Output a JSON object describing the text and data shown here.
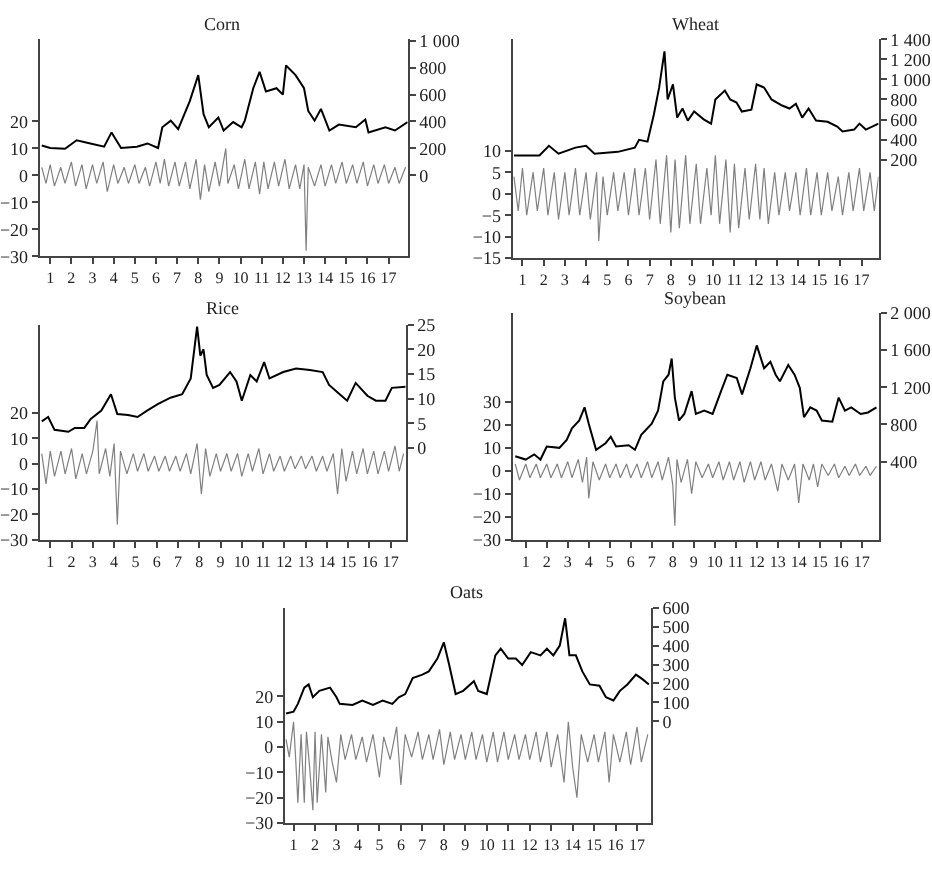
{
  "chart_data": [
    {
      "type": "line",
      "title": "Corn",
      "xlim": [
        0.5,
        17.9
      ],
      "xticks": [
        1,
        2,
        3,
        4,
        5,
        6,
        7,
        8,
        9,
        10,
        11,
        12,
        13,
        14,
        15,
        16,
        17
      ],
      "ylim": [
        -30,
        50.5
      ],
      "yticks": [
        -30,
        -20,
        -10,
        0,
        10,
        20
      ],
      "y2lim": [
        -600,
        1010
      ],
      "y2ticks": [
        0,
        200,
        400,
        600,
        800,
        {
          "value": 1000,
          "label": "1 000"
        }
      ],
      "series": [
        {
          "color": "#808080",
          "x": [
            0.6,
            0.8,
            1.0,
            1.2,
            1.5,
            1.7,
            2.0,
            2.2,
            2.5,
            2.7,
            3.0,
            3.2,
            3.5,
            3.7,
            4.0,
            4.2,
            4.5,
            4.7,
            5.0,
            5.2,
            5.5,
            5.7,
            6.0,
            6.2,
            6.4,
            6.6,
            6.9,
            7.1,
            7.4,
            7.6,
            7.9,
            8.1,
            8.3,
            8.5,
            8.8,
            9.0,
            9.3,
            9.4,
            9.7,
            9.9,
            10.2,
            10.4,
            10.7,
            10.9,
            11.1,
            11.3,
            11.6,
            11.8,
            12.1,
            12.3,
            12.6,
            12.8,
            13.0,
            13.1,
            13.2,
            13.5,
            13.8,
            14.0,
            14.3,
            14.5,
            14.8,
            15.0,
            15.3,
            15.5,
            15.8,
            16.0,
            16.3,
            16.5,
            16.8,
            17.0,
            17.3,
            17.5,
            17.8
          ],
          "values": [
            3,
            -3,
            4,
            -4,
            3,
            -3,
            5,
            -4,
            4,
            -5,
            4,
            -3,
            5,
            -6,
            4,
            -3,
            3,
            -3,
            4,
            -3,
            3,
            -4,
            5,
            -3,
            6,
            -4,
            5,
            -4,
            5,
            -5,
            6,
            -9,
            4,
            -6,
            5,
            -4,
            10,
            -3,
            4,
            -5,
            6,
            -5,
            5,
            -7,
            5,
            -5,
            5,
            -4,
            6,
            -5,
            4,
            -5,
            4,
            -28,
            3,
            -4,
            4,
            -4,
            4,
            -3,
            5,
            -3,
            4,
            -3,
            5,
            -4,
            4,
            -3,
            4,
            -3,
            3,
            -3,
            3
          ]
        },
        {
          "color": "#000000",
          "axis": "y2",
          "x": [
            0.6,
            1,
            1.7,
            2.25,
            2.9,
            3.55,
            3.9,
            4.35,
            5.1,
            5.6,
            6.1,
            6.3,
            6.7,
            7.05,
            7.6,
            8.0,
            8.25,
            8.5,
            8.95,
            9.2,
            9.65,
            10.05,
            10.2,
            10.6,
            10.9,
            11.2,
            11.7,
            12.0,
            12.15,
            12.6,
            13.0,
            13.2,
            13.5,
            13.8,
            14.2,
            14.65,
            15.45,
            15.9,
            16.05,
            16.85,
            17.3,
            17.9
          ],
          "values": [
            222,
            203,
            198,
            261,
            237,
            213,
            319,
            203,
            213,
            237,
            203,
            357,
            406,
            343,
            551,
            744,
            454,
            357,
            430,
            333,
            396,
            357,
            406,
            647,
            768,
            623,
            647,
            599,
            816,
            744,
            647,
            478,
            406,
            493,
            333,
            377,
            357,
            415,
            319,
            357,
            333,
            396
          ]
        }
      ]
    },
    {
      "type": "line",
      "title": "Wheat",
      "xlim": [
        0.53,
        17.8
      ],
      "xticks": [
        1,
        2,
        3,
        4,
        5,
        6,
        7,
        8,
        9,
        10,
        11,
        12,
        13,
        14,
        15,
        16,
        17
      ],
      "ylim": [
        -15,
        36
      ],
      "yticks": [
        -15,
        -10,
        -5,
        0,
        5,
        10
      ],
      "y2lim": [
        -782,
        1400
      ],
      "y2ticks": [
        200,
        400,
        600,
        800,
        {
          "value": 1000,
          "label": "1 000"
        },
        {
          "value": 1200,
          "label": "1 200"
        },
        {
          "value": 1400,
          "label": "1 400"
        }
      ],
      "series": [
        {
          "color": "#808080",
          "x": [
            0.6,
            0.8,
            1.0,
            1.2,
            1.5,
            1.7,
            2.0,
            2.2,
            2.5,
            2.7,
            3.0,
            3.2,
            3.5,
            3.7,
            4.0,
            4.2,
            4.5,
            4.6,
            4.8,
            5.0,
            5.3,
            5.5,
            5.8,
            6.0,
            6.3,
            6.5,
            6.8,
            7.0,
            7.3,
            7.5,
            7.8,
            8.0,
            8.2,
            8.4,
            8.7,
            8.9,
            9.2,
            9.4,
            9.7,
            9.9,
            10.1,
            10.3,
            10.6,
            10.8,
            11.0,
            11.2,
            11.5,
            11.7,
            12.0,
            12.2,
            12.4,
            12.6,
            12.9,
            13.1,
            13.4,
            13.6,
            13.9,
            14.1,
            14.4,
            14.6,
            14.9,
            15.1,
            15.4,
            15.6,
            15.9,
            16.1,
            16.4,
            16.6,
            16.9,
            17.1,
            17.4,
            17.6,
            17.8
          ],
          "values": [
            4,
            -4,
            6,
            -5,
            5,
            -4,
            6,
            -5,
            5,
            -6,
            5,
            -5,
            6,
            -5,
            5,
            -6,
            5,
            -11,
            4,
            -5,
            5,
            -4,
            5,
            -5,
            6,
            -5,
            6,
            -6,
            8,
            -7,
            9,
            -9,
            8,
            -8,
            9,
            -7,
            7,
            -7,
            6,
            -5,
            9,
            -7,
            8,
            -9,
            7,
            -8,
            6,
            -6,
            7,
            -6,
            6,
            -7,
            5,
            -5,
            5,
            -4,
            5,
            -5,
            6,
            -5,
            5,
            -5,
            5,
            -4,
            4,
            -5,
            5,
            -4,
            6,
            -4,
            5,
            -4,
            4
          ]
        },
        {
          "color": "#000000",
          "axis": "y2",
          "x": [
            0.6,
            1.8,
            2.25,
            2.7,
            3.5,
            4.0,
            4.4,
            5.5,
            6.3,
            6.5,
            6.9,
            7.2,
            7.45,
            7.7,
            7.85,
            8.1,
            8.3,
            8.55,
            8.8,
            9.1,
            9.55,
            9.9,
            10.1,
            10.55,
            10.8,
            11.1,
            11.35,
            11.8,
            12.05,
            12.4,
            12.75,
            13.25,
            13.6,
            13.9,
            14.2,
            14.5,
            14.85,
            15.4,
            15.85,
            16.1,
            16.65,
            16.9,
            17.2,
            17.8
          ],
          "values": [
            242,
            242,
            338,
            260,
            320,
            338,
            260,
            278,
            320,
            398,
            380,
            650,
            920,
            1280,
            800,
            950,
            620,
            710,
            590,
            680,
            602,
            560,
            800,
            890,
            800,
            770,
            680,
            698,
            950,
            920,
            800,
            740,
            710,
            758,
            620,
            710,
            590,
            578,
            530,
            482,
            500,
            560,
            500,
            560
          ]
        }
      ]
    },
    {
      "type": "line",
      "title": "Rice",
      "xlim": [
        0.5,
        17.7
      ],
      "xticks": [
        1,
        2,
        3,
        4,
        5,
        6,
        7,
        8,
        9,
        10,
        11,
        12,
        13,
        14,
        15,
        16,
        17
      ],
      "ylim": [
        -30,
        55
      ],
      "yticks": [
        -30,
        -20,
        -10,
        0,
        10,
        20
      ],
      "y2lim": [
        -18.5,
        25
      ],
      "y2ticks": [
        0,
        5,
        10,
        15,
        20,
        25
      ],
      "series": [
        {
          "color": "#808080",
          "x": [
            0.6,
            0.8,
            1.0,
            1.2,
            1.5,
            1.7,
            2.0,
            2.2,
            2.5,
            2.7,
            3.0,
            3.2,
            3.3,
            3.6,
            3.8,
            4.0,
            4.15,
            4.3,
            4.6,
            4.9,
            5.1,
            5.4,
            5.6,
            5.9,
            6.1,
            6.4,
            6.6,
            6.9,
            7.1,
            7.4,
            7.6,
            7.9,
            8.1,
            8.3,
            8.5,
            8.8,
            9.0,
            9.3,
            9.5,
            9.8,
            10.0,
            10.3,
            10.5,
            10.8,
            11.0,
            11.3,
            11.5,
            11.8,
            12.0,
            12.3,
            12.5,
            12.8,
            13.0,
            13.3,
            13.5,
            13.8,
            14.0,
            14.3,
            14.5,
            14.7,
            14.9,
            15.2,
            15.4,
            15.7,
            15.9,
            16.2,
            16.4,
            16.7,
            16.9,
            17.2,
            17.4,
            17.6
          ],
          "values": [
            4,
            -8,
            5,
            -5,
            5,
            -4,
            6,
            -6,
            4,
            -4,
            5,
            17,
            -4,
            6,
            -5,
            8,
            -24,
            5,
            -4,
            4,
            -3,
            4,
            -3,
            3,
            -3,
            3,
            -3,
            3,
            -3,
            4,
            -4,
            8,
            -12,
            6,
            -5,
            4,
            -3,
            4,
            -3,
            4,
            -5,
            4,
            -3,
            6,
            -4,
            4,
            -3,
            3,
            -3,
            3,
            -2,
            3,
            -2,
            3,
            -3,
            3,
            -3,
            4,
            -12,
            6,
            -7,
            5,
            -4,
            6,
            -4,
            5,
            -4,
            5,
            -3,
            7,
            -3,
            4
          ]
        },
        {
          "color": "#000000",
          "axis": "y2",
          "x": [
            0.6,
            0.9,
            1.2,
            1.85,
            2.15,
            2.6,
            2.9,
            3.4,
            3.85,
            4.15,
            4.65,
            5.1,
            5.55,
            6.05,
            6.65,
            7.2,
            7.6,
            7.9,
            8.05,
            8.2,
            8.35,
            8.65,
            8.95,
            9.45,
            9.75,
            10.0,
            10.4,
            10.7,
            11.05,
            11.3,
            11.95,
            12.55,
            13.2,
            13.8,
            14.1,
            14.6,
            14.95,
            15.35,
            15.9,
            16.3,
            16.75,
            17.05,
            17.7
          ],
          "values": [
            5.4,
            6.3,
            3.7,
            3.3,
            4.1,
            4.1,
            5.9,
            7.6,
            10.9,
            6.9,
            6.7,
            6.3,
            7.6,
            8.9,
            10.2,
            10.9,
            14.1,
            24.6,
            18.7,
            20.0,
            14.8,
            12.2,
            12.8,
            15.4,
            13.5,
            9.6,
            14.8,
            13.5,
            17.4,
            14.1,
            15.4,
            16.1,
            15.8,
            15.4,
            12.8,
            10.9,
            9.6,
            13.2,
            10.6,
            9.6,
            9.6,
            12.2,
            12.4
          ]
        }
      ]
    },
    {
      "type": "line",
      "title": "Soybean",
      "xlim": [
        0.37,
        17.8
      ],
      "xticks": [
        1,
        2,
        3,
        4,
        5,
        6,
        7,
        8,
        9,
        10,
        11,
        12,
        13,
        14,
        15,
        16,
        17
      ],
      "ylim": [
        -30,
        69
      ],
      "yticks": [
        -30,
        -20,
        -10,
        0,
        10,
        20,
        30
      ],
      "y2lim": [
        -440,
        2000
      ],
      "y2ticks": [
        400,
        800,
        {
          "value": 1200,
          "label": "1 200"
        },
        {
          "value": 1600,
          "label": "1 600"
        },
        {
          "value": 2000,
          "label": "2 000"
        }
      ],
      "series": [
        {
          "color": "#808080",
          "x": [
            0.5,
            0.7,
            1.0,
            1.2,
            1.5,
            1.7,
            2.0,
            2.2,
            2.5,
            2.7,
            3.0,
            3.2,
            3.5,
            3.7,
            3.9,
            4.0,
            4.2,
            4.5,
            4.8,
            5.0,
            5.3,
            5.5,
            5.8,
            6.0,
            6.3,
            6.5,
            6.8,
            7.0,
            7.3,
            7.5,
            7.8,
            8.0,
            8.1,
            8.2,
            8.4,
            8.7,
            8.9,
            9.1,
            9.4,
            9.7,
            9.9,
            10.2,
            10.4,
            10.7,
            10.9,
            11.2,
            11.4,
            11.7,
            11.9,
            12.2,
            12.4,
            12.7,
            13.0,
            13.2,
            13.5,
            13.8,
            14.0,
            14.2,
            14.5,
            14.7,
            14.9,
            15.1,
            15.4,
            15.7,
            15.9,
            16.2,
            16.4,
            16.7,
            16.9,
            17.2,
            17.4,
            17.7
          ],
          "values": [
            3,
            -4,
            3,
            -3,
            3,
            -3,
            3,
            -3,
            3,
            -3,
            4,
            -3,
            5,
            -5,
            6,
            -12,
            4,
            -4,
            3,
            -3,
            3,
            -3,
            3,
            -3,
            3,
            -3,
            4,
            -3,
            4,
            -4,
            6,
            -6,
            -24,
            5,
            -5,
            5,
            -10,
            4,
            -3,
            3,
            -3,
            4,
            -4,
            4,
            -4,
            4,
            -5,
            4,
            -4,
            4,
            -4,
            3,
            -9,
            3,
            -4,
            3,
            -14,
            3,
            -4,
            3,
            -7,
            3,
            -2,
            3,
            -3,
            2,
            -2,
            3,
            -2,
            2,
            -2,
            2
          ]
        },
        {
          "color": "#000000",
          "axis": "y2",
          "x": [
            0.5,
            1.0,
            1.4,
            1.7,
            2.0,
            2.6,
            2.95,
            3.2,
            3.55,
            3.8,
            4.0,
            4.35,
            4.8,
            5.05,
            5.3,
            5.9,
            6.2,
            6.5,
            7.0,
            7.3,
            7.55,
            7.8,
            7.95,
            8.1,
            8.3,
            8.55,
            8.9,
            9.1,
            9.5,
            9.9,
            10.3,
            10.6,
            11.05,
            11.3,
            11.7,
            12.0,
            12.35,
            12.65,
            12.9,
            13.1,
            13.5,
            13.8,
            14.05,
            14.25,
            14.55,
            14.85,
            15.1,
            15.6,
            15.9,
            16.2,
            16.5,
            16.95,
            17.3,
            17.7
          ],
          "values": [
            456,
            421,
            477,
            421,
            561,
            547,
            632,
            758,
            842,
            983,
            807,
            526,
            597,
            667,
            561,
            575,
            526,
            688,
            807,
            948,
            1263,
            1334,
            1509,
            1088,
            842,
            912,
            1158,
            912,
            948,
            912,
            1158,
            1334,
            1299,
            1123,
            1404,
            1650,
            1404,
            1474,
            1334,
            1263,
            1439,
            1334,
            1193,
            877,
            983,
            948,
            842,
            828,
            1088,
            948,
            983,
            912,
            928,
            983
          ]
        }
      ]
    },
    {
      "type": "line",
      "title": "Oats",
      "xlim": [
        0.6,
        17.65
      ],
      "xticks": [
        1,
        2,
        3,
        4,
        5,
        6,
        7,
        8,
        9,
        10,
        11,
        12,
        13,
        14,
        15,
        16,
        17
      ],
      "ylim": [
        -30,
        55
      ],
      "yticks": [
        -30,
        -20,
        -10,
        0,
        10,
        20
      ],
      "y2lim": [
        -538,
        600
      ],
      "y2ticks": [
        0,
        100,
        200,
        300,
        400,
        500,
        600
      ],
      "series": [
        {
          "color": "#808080",
          "x": [
            0.65,
            0.8,
            1.0,
            1.1,
            1.2,
            1.35,
            1.5,
            1.6,
            1.75,
            1.9,
            2.0,
            2.1,
            2.3,
            2.5,
            2.6,
            2.8,
            3.0,
            3.2,
            3.4,
            3.7,
            3.9,
            4.2,
            4.4,
            4.7,
            5.0,
            5.2,
            5.5,
            5.8,
            6.0,
            6.2,
            6.5,
            6.8,
            7.0,
            7.3,
            7.5,
            7.8,
            8.0,
            8.3,
            8.5,
            8.8,
            9.0,
            9.3,
            9.5,
            9.8,
            10.0,
            10.3,
            10.5,
            10.8,
            11.0,
            11.3,
            11.5,
            11.8,
            12.0,
            12.3,
            12.5,
            12.8,
            13.0,
            13.3,
            13.6,
            13.8,
            14.0,
            14.2,
            14.4,
            14.7,
            15.0,
            15.2,
            15.5,
            15.7,
            15.9,
            16.2,
            16.5,
            16.7,
            17.0,
            17.2,
            17.5
          ],
          "values": [
            3,
            -4,
            10,
            -5,
            -22,
            5,
            -22,
            6,
            -8,
            -25,
            6,
            -22,
            5,
            -18,
            4,
            -6,
            -14,
            5,
            -5,
            5,
            -5,
            4,
            -6,
            5,
            -12,
            4,
            -5,
            8,
            -15,
            5,
            -4,
            6,
            -5,
            5,
            -5,
            7,
            -7,
            6,
            -5,
            5,
            -5,
            6,
            -5,
            5,
            -6,
            6,
            -6,
            6,
            -5,
            5,
            -5,
            5,
            -5,
            6,
            -6,
            6,
            -8,
            5,
            -14,
            10,
            -8,
            -20,
            5,
            -6,
            5,
            -6,
            6,
            -14,
            5,
            -6,
            6,
            -7,
            8,
            -6,
            5
          ]
        },
        {
          "color": "#000000",
          "axis": "y2",
          "x": [
            0.65,
            1.0,
            1.2,
            1.5,
            1.7,
            1.9,
            2.2,
            2.7,
            3.0,
            3.15,
            3.75,
            4.2,
            4.7,
            5.15,
            5.6,
            5.9,
            6.2,
            6.55,
            7.0,
            7.3,
            7.7,
            8.0,
            8.25,
            8.55,
            8.9,
            9.4,
            9.6,
            10.0,
            10.2,
            10.4,
            10.65,
            11.0,
            11.35,
            11.65,
            12.05,
            12.5,
            12.8,
            13.1,
            13.4,
            13.65,
            13.85,
            14.15,
            14.45,
            14.8,
            15.25,
            15.55,
            15.9,
            16.2,
            16.55,
            16.95,
            17.25,
            17.55
          ],
          "values": [
            41,
            51,
            92,
            178,
            195,
            127,
            161,
            178,
            127,
            92,
            86,
            110,
            86,
            110,
            92,
            127,
            144,
            229,
            247,
            264,
            332,
            418,
            298,
            144,
            161,
            212,
            161,
            144,
            247,
            349,
            384,
            332,
            332,
            298,
            366,
            349,
            384,
            349,
            401,
            545,
            349,
            349,
            264,
            195,
            188,
            127,
            110,
            161,
            195,
            247,
            223,
            195
          ]
        }
      ]
    }
  ]
}
